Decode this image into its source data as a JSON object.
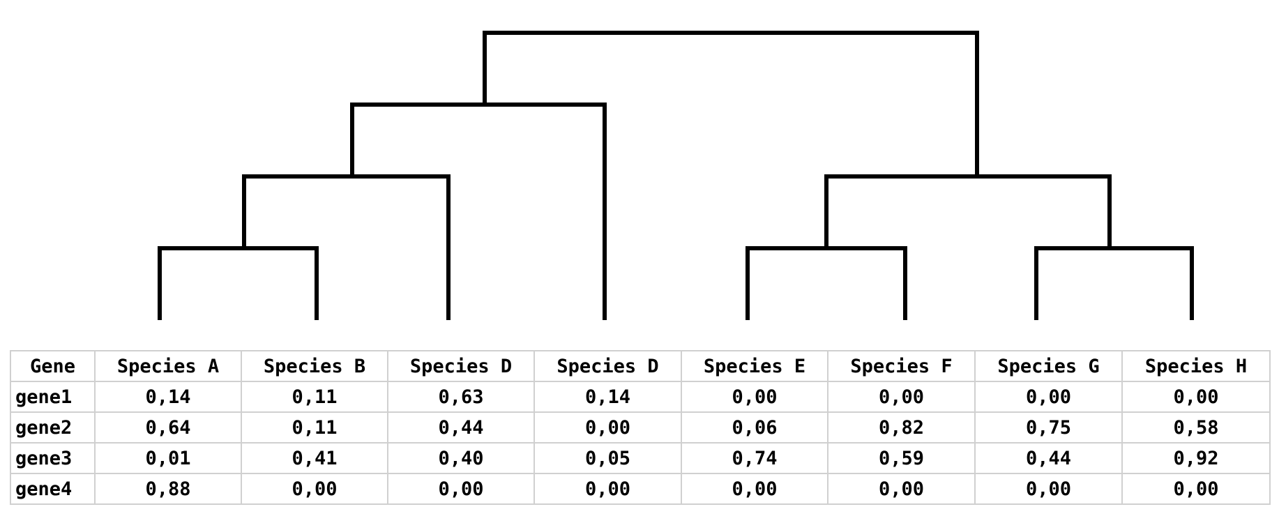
{
  "table": {
    "header": [
      "Gene",
      "Species A",
      "Species B",
      "Species D",
      "Species D",
      "Species E",
      "Species F",
      "Species G",
      "Species H"
    ],
    "rows": [
      [
        "gene1",
        "0,14",
        "0,11",
        "0,63",
        "0,14",
        "0,00",
        "0,00",
        "0,00",
        "0,00"
      ],
      [
        "gene2",
        "0,64",
        "0,11",
        "0,44",
        "0,00",
        "0,06",
        "0,82",
        "0,75",
        "0,58"
      ],
      [
        "gene3",
        "0,01",
        "0,41",
        "0,40",
        "0,05",
        "0,74",
        "0,59",
        "0,44",
        "0,92"
      ],
      [
        "gene4",
        "0,88",
        "0,00",
        "0,00",
        "0,00",
        "0,00",
        "0,00",
        "0,00",
        "0,00"
      ]
    ]
  },
  "colors": {
    "branch": "#000000",
    "grid": "#d0d0d0",
    "text": "#000000"
  }
}
